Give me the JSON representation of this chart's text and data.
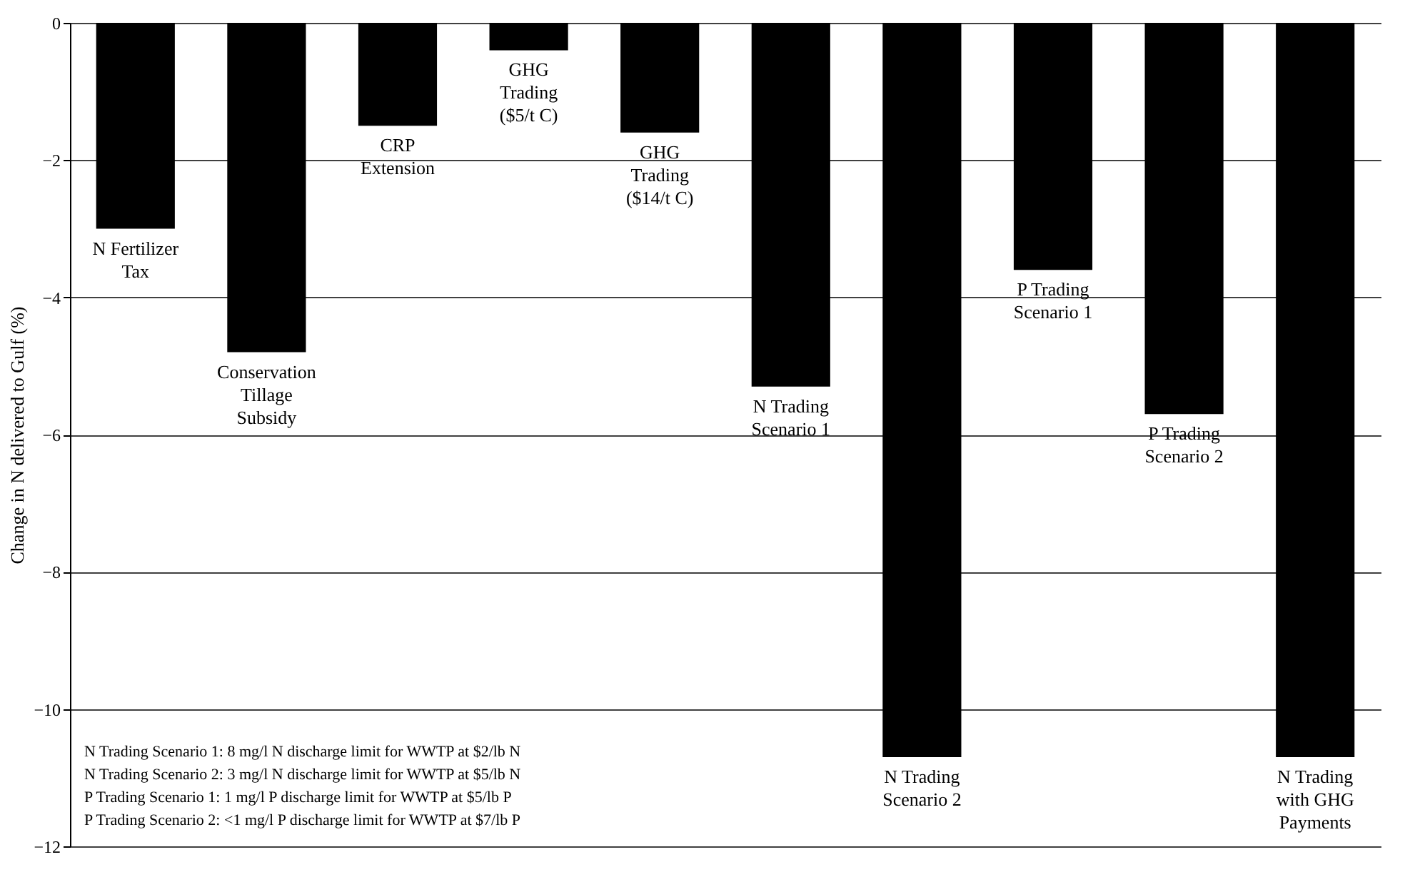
{
  "chart_data": {
    "type": "bar",
    "ylabel": "Change in N delivered to Gulf (%)",
    "categories": [
      "N Fertilizer\nTax",
      "Conservation\nTillage\nSubsidy",
      "CRP\nExtension",
      "GHG\nTrading\n($5/t C)",
      "GHG\nTrading\n($14/t C)",
      "N Trading\nScenario 1",
      "N Trading\nScenario 2",
      "P Trading\nScenario 1",
      "P Trading\nScenario 2",
      "N Trading\nwith GHG\nPayments"
    ],
    "values": [
      -3.0,
      -4.8,
      -1.5,
      -0.4,
      -1.6,
      -5.3,
      -10.7,
      -3.6,
      -5.7,
      -10.7
    ],
    "color": "#000000",
    "ylim": [
      -12,
      0
    ],
    "yticks": [
      -12,
      -10,
      -8,
      -6,
      -4,
      -2,
      0
    ],
    "grid": "y",
    "annotations": [
      "N Trading Scenario 1: 8 mg/l N discharge limit for WWTP at $2/lb N",
      "N Trading Scenario 2: 3 mg/l N discharge limit for WWTP at $5/lb N",
      "P Trading Scenario 1: 1 mg/l P discharge limit for WWTP at $5/lb P",
      "P Trading Scenario 2: <1 mg/l P discharge limit for WWTP at $7/lb P"
    ]
  }
}
